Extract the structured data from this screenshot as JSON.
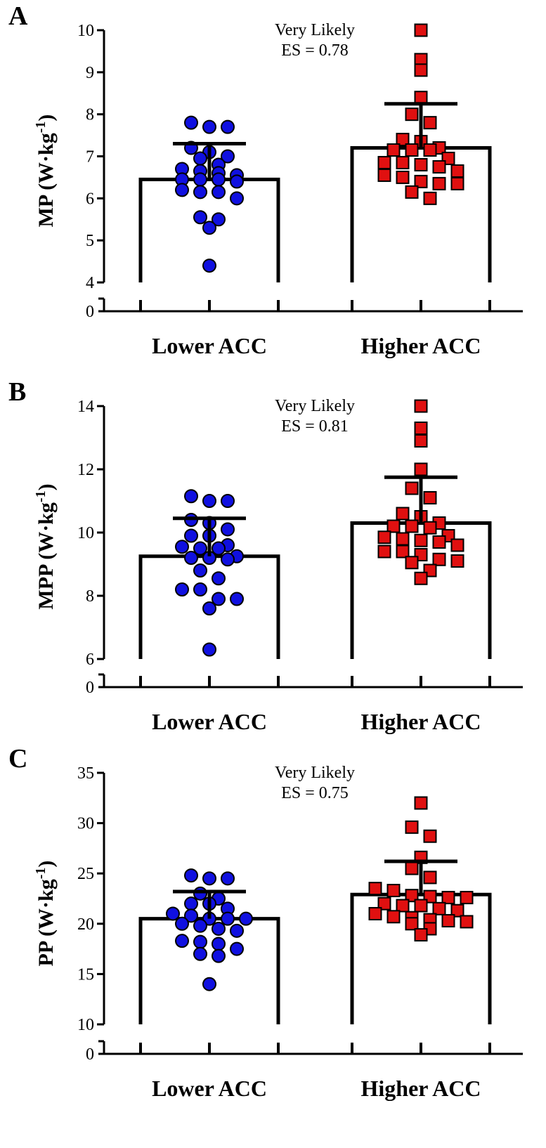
{
  "chart_data": [
    {
      "type": "scatter",
      "panel": "A",
      "ylabel_main": "MP (W",
      "ylabel_mid": "·kg",
      "ylabel_sup": "-1",
      "ylabel_end": ")",
      "categories": [
        "Lower ACC",
        "Higher ACC"
      ],
      "yticks": [
        4,
        5,
        6,
        7,
        8,
        9,
        10
      ],
      "ylim": [
        4,
        10
      ],
      "broken_axis_zero": "0",
      "annotation_line1": "Very Likely",
      "annotation_line2": "ES = 0.78",
      "series": [
        {
          "name": "Lower ACC",
          "marker": "circle",
          "color": "#1010e0",
          "mean": 6.45,
          "sd": 0.85,
          "values": [
            7.8,
            7.7,
            7.7,
            7.2,
            7.1,
            7.0,
            6.95,
            6.8,
            6.7,
            6.65,
            6.6,
            6.55,
            6.45,
            6.45,
            6.45,
            6.4,
            6.2,
            6.15,
            6.15,
            6.0,
            5.55,
            5.5,
            5.3,
            4.4
          ]
        },
        {
          "name": "Higher ACC",
          "marker": "square",
          "color": "#e01010",
          "mean": 7.2,
          "sd": 1.05,
          "values": [
            10.0,
            9.3,
            9.05,
            8.4,
            8.0,
            7.8,
            7.4,
            7.35,
            7.2,
            7.15,
            7.15,
            7.15,
            6.95,
            6.85,
            6.85,
            6.8,
            6.75,
            6.65,
            6.55,
            6.5,
            6.4,
            6.35,
            6.35,
            6.15,
            6.0
          ]
        }
      ]
    },
    {
      "type": "scatter",
      "panel": "B",
      "ylabel_main": "MPP (W",
      "ylabel_mid": "·kg",
      "ylabel_sup": "-1",
      "ylabel_end": ")",
      "categories": [
        "Lower ACC",
        "Higher ACC"
      ],
      "yticks": [
        6,
        8,
        10,
        12,
        14
      ],
      "ylim": [
        6,
        14
      ],
      "broken_axis_zero": "0",
      "annotation_line1": "Very Likely",
      "annotation_line2": "ES = 0.81",
      "series": [
        {
          "name": "Lower ACC",
          "marker": "circle",
          "color": "#1010e0",
          "mean": 9.25,
          "sd": 1.2,
          "values": [
            11.15,
            11.0,
            11.0,
            10.4,
            10.3,
            10.1,
            9.9,
            9.9,
            9.6,
            9.55,
            9.5,
            9.5,
            9.25,
            9.2,
            9.2,
            9.15,
            8.8,
            8.55,
            8.2,
            8.2,
            7.9,
            7.9,
            7.6,
            6.3
          ]
        },
        {
          "name": "Higher ACC",
          "marker": "square",
          "color": "#e01010",
          "mean": 10.3,
          "sd": 1.45,
          "values": [
            14.0,
            13.3,
            12.9,
            12.0,
            11.4,
            11.1,
            10.6,
            10.5,
            10.3,
            10.2,
            10.2,
            10.15,
            9.9,
            9.85,
            9.8,
            9.75,
            9.7,
            9.6,
            9.4,
            9.4,
            9.3,
            9.15,
            9.1,
            9.05,
            8.8,
            8.55
          ]
        }
      ]
    },
    {
      "type": "scatter",
      "panel": "C",
      "ylabel_main": "PP (W",
      "ylabel_mid": "·kg",
      "ylabel_sup": "-1",
      "ylabel_end": ")",
      "categories": [
        "Lower ACC",
        "Higher ACC"
      ],
      "yticks": [
        10,
        15,
        20,
        25,
        30,
        35
      ],
      "ylim": [
        10,
        35
      ],
      "broken_axis_zero": "0",
      "annotation_line1": "Very Likely",
      "annotation_line2": "ES = 0.75",
      "series": [
        {
          "name": "Lower ACC",
          "marker": "circle",
          "color": "#1010e0",
          "mean": 20.5,
          "sd": 2.7,
          "values": [
            24.8,
            24.5,
            24.5,
            23.0,
            22.5,
            22.0,
            22.0,
            21.5,
            21.0,
            20.8,
            20.5,
            20.5,
            20.5,
            20.0,
            19.8,
            19.5,
            19.3,
            18.3,
            18.2,
            18.0,
            17.5,
            17.0,
            16.8,
            14.0
          ]
        },
        {
          "name": "Higher ACC",
          "marker": "square",
          "color": "#e01010",
          "mean": 22.9,
          "sd": 3.3,
          "values": [
            32.0,
            29.6,
            28.7,
            26.6,
            25.5,
            24.6,
            23.5,
            23.3,
            22.8,
            22.7,
            22.6,
            22.6,
            22.0,
            21.8,
            21.8,
            21.5,
            21.3,
            21.0,
            20.7,
            20.6,
            20.4,
            20.3,
            20.2,
            20.0,
            19.5,
            18.9
          ]
        }
      ]
    }
  ]
}
